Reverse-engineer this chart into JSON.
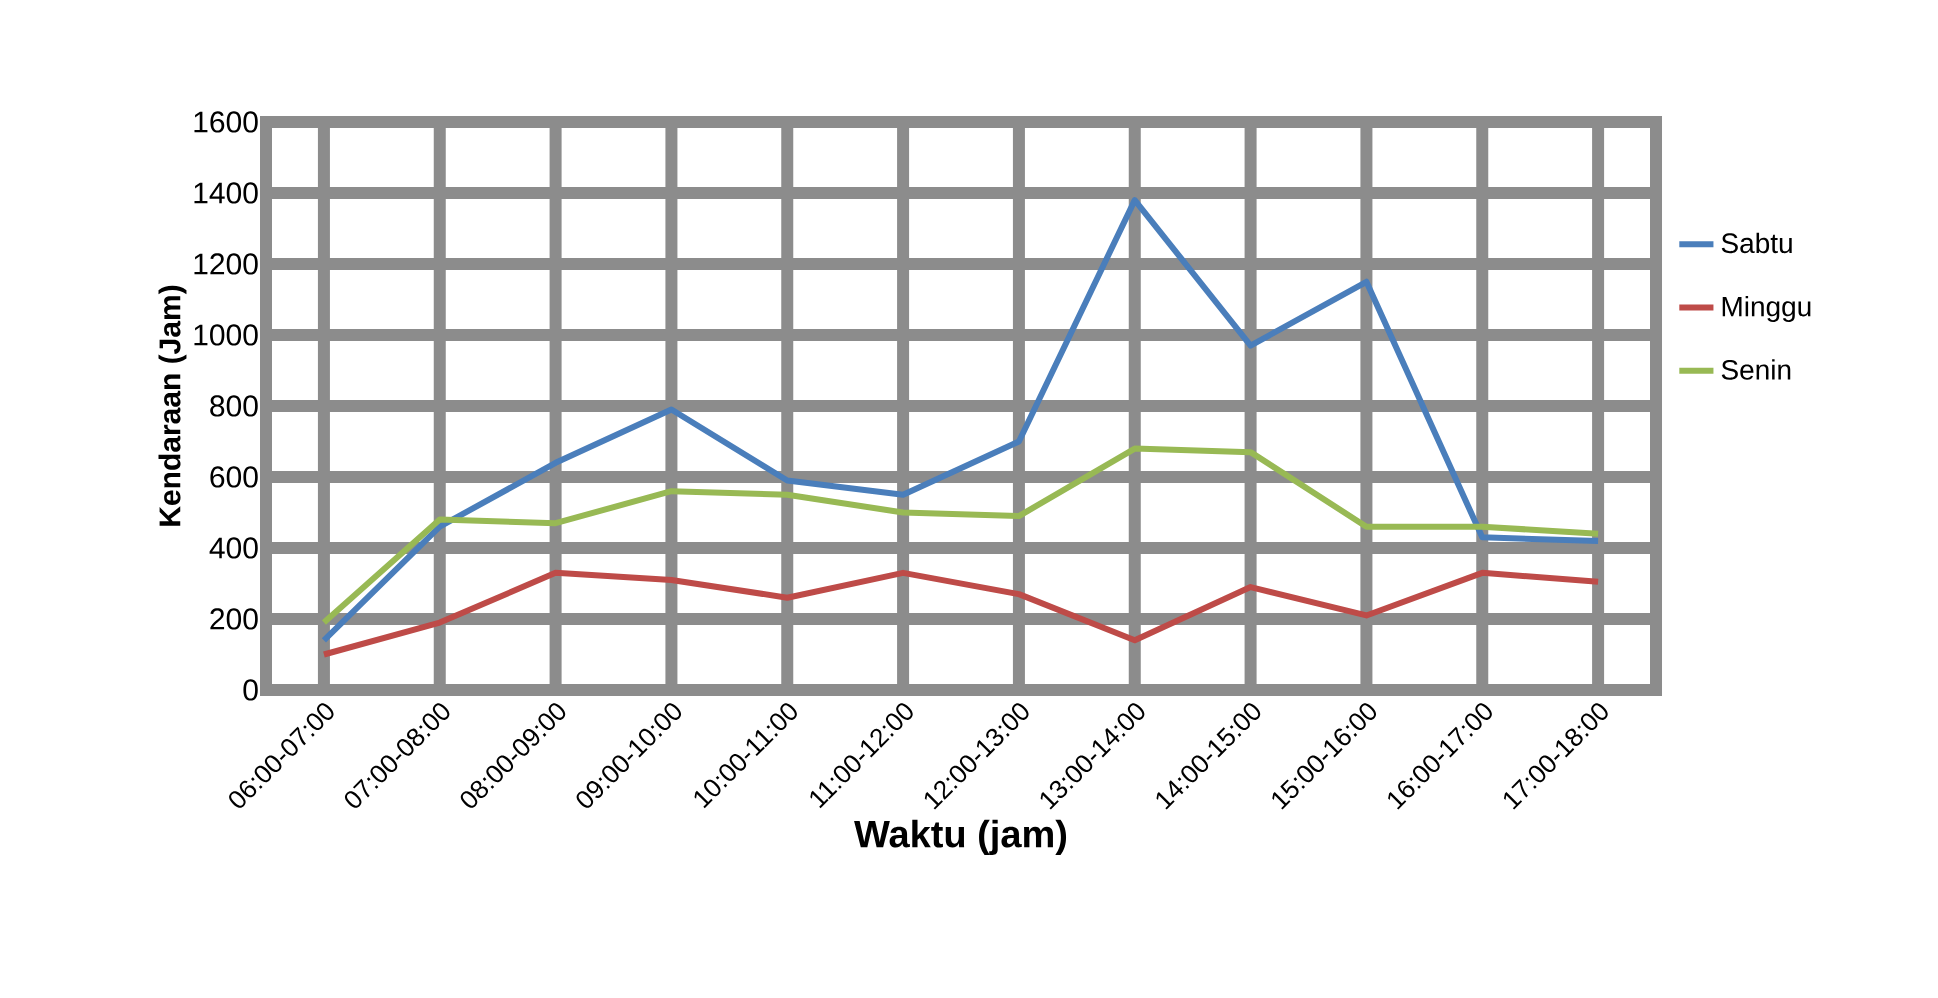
{
  "chart_data": {
    "type": "line",
    "xlabel": "Waktu (jam)",
    "ylabel": "Kendaraan (Jam)",
    "categories": [
      "06:00-07:00",
      "07:00-08:00",
      "08:00-09:00",
      "09:00-10:00",
      "10:00-11:00",
      "11:00-12:00",
      "12:00-13:00",
      "13:00-14:00",
      "14:00-15:00",
      "15:00-16:00",
      "16:00-17:00",
      "17:00-18:00"
    ],
    "series": [
      {
        "name": "Sabtu",
        "color": "#4a7ebb",
        "values": [
          140,
          460,
          640,
          790,
          590,
          550,
          700,
          1380,
          970,
          1150,
          430,
          420
        ]
      },
      {
        "name": "Minggu",
        "color": "#be4b48",
        "values": [
          100,
          190,
          330,
          310,
          260,
          330,
          270,
          140,
          290,
          210,
          330,
          305
        ]
      },
      {
        "name": "Senin",
        "color": "#98b954",
        "values": [
          190,
          480,
          470,
          560,
          550,
          500,
          490,
          680,
          670,
          460,
          460,
          440
        ]
      }
    ],
    "ylim": [
      0,
      1600
    ],
    "yticks": [
      0,
      200,
      400,
      600,
      800,
      1000,
      1200,
      1400,
      1600
    ],
    "grid": true,
    "legend": "right",
    "marker": "none",
    "line_style": "solid"
  }
}
